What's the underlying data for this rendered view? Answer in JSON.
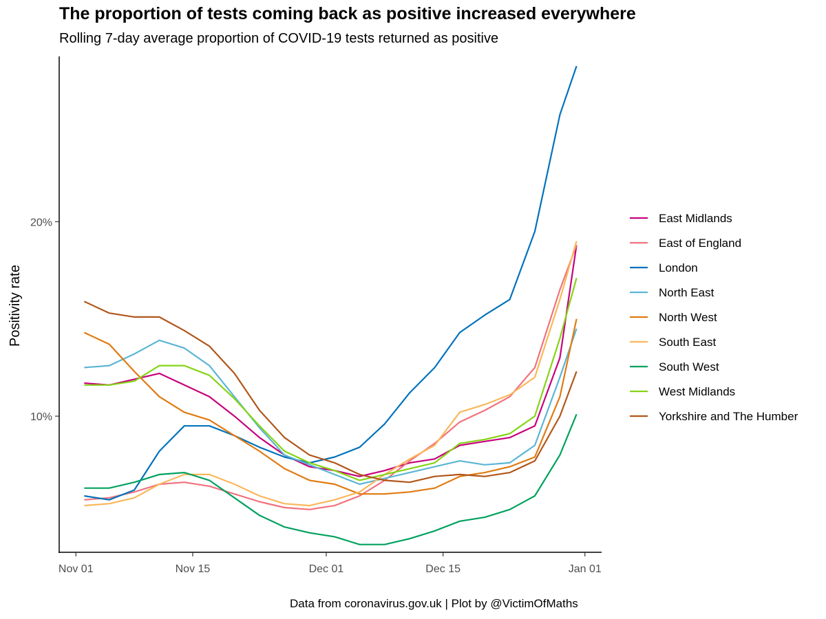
{
  "title": "The proportion of tests coming back as positive increased everywhere",
  "subtitle": "Rolling 7-day average proportion of COVID-19 tests returned as positive",
  "caption": "Data from coronavirus.gov.uk | Plot by @VictimOfMaths",
  "chart_data": {
    "type": "line",
    "title": "The proportion of tests coming back as positive increased everywhere",
    "subtitle": "Rolling 7-day average proportion of COVID-19 tests returned as positive",
    "ylabel": "Positivity rate",
    "xlabel": "",
    "x_start": "2020-10-30",
    "x_end": "2021-01-03",
    "ylim": [
      3.0,
      28.5
    ],
    "grid": false,
    "legend_position": "right",
    "x_ticks": [
      {
        "date": "2020-11-01",
        "label": "Nov 01"
      },
      {
        "date": "2020-11-15",
        "label": "Nov 15"
      },
      {
        "date": "2020-12-01",
        "label": "Dec 01"
      },
      {
        "date": "2020-12-15",
        "label": "Dec 15"
      },
      {
        "date": "2021-01-01",
        "label": "Jan 01"
      }
    ],
    "y_ticks": [
      {
        "value": 10,
        "label": "10%"
      },
      {
        "value": 20,
        "label": "20%"
      }
    ],
    "series": [
      {
        "name": "East Midlands",
        "color": "#C7007D",
        "points": [
          [
            "2020-11-02",
            11.7
          ],
          [
            "2020-11-05",
            11.6
          ],
          [
            "2020-11-08",
            11.9
          ],
          [
            "2020-11-11",
            12.2
          ],
          [
            "2020-11-14",
            11.6
          ],
          [
            "2020-11-17",
            11.0
          ],
          [
            "2020-11-20",
            10.0
          ],
          [
            "2020-11-23",
            8.9
          ],
          [
            "2020-11-26",
            8.0
          ],
          [
            "2020-11-29",
            7.4
          ],
          [
            "2020-12-02",
            7.2
          ],
          [
            "2020-12-05",
            6.9
          ],
          [
            "2020-12-08",
            7.2
          ],
          [
            "2020-12-11",
            7.6
          ],
          [
            "2020-12-14",
            7.8
          ],
          [
            "2020-12-17",
            8.5
          ],
          [
            "2020-12-20",
            8.7
          ],
          [
            "2020-12-23",
            8.9
          ],
          [
            "2020-12-26",
            9.5
          ],
          [
            "2020-12-29",
            13.0
          ],
          [
            "2020-12-31",
            18.8
          ]
        ]
      },
      {
        "name": "East of England",
        "color": "#F0727D",
        "points": [
          [
            "2020-11-02",
            5.7
          ],
          [
            "2020-11-05",
            5.8
          ],
          [
            "2020-11-08",
            6.1
          ],
          [
            "2020-11-11",
            6.5
          ],
          [
            "2020-11-14",
            6.6
          ],
          [
            "2020-11-17",
            6.4
          ],
          [
            "2020-11-20",
            6.0
          ],
          [
            "2020-11-23",
            5.6
          ],
          [
            "2020-11-26",
            5.3
          ],
          [
            "2020-11-29",
            5.2
          ],
          [
            "2020-12-02",
            5.4
          ],
          [
            "2020-12-05",
            5.9
          ],
          [
            "2020-12-08",
            6.7
          ],
          [
            "2020-12-11",
            7.7
          ],
          [
            "2020-12-14",
            8.6
          ],
          [
            "2020-12-17",
            9.7
          ],
          [
            "2020-12-20",
            10.3
          ],
          [
            "2020-12-23",
            11.0
          ],
          [
            "2020-12-26",
            12.5
          ],
          [
            "2020-12-29",
            16.5
          ],
          [
            "2020-12-31",
            18.8
          ]
        ]
      },
      {
        "name": "London",
        "color": "#0072BB",
        "points": [
          [
            "2020-11-02",
            5.9
          ],
          [
            "2020-11-05",
            5.7
          ],
          [
            "2020-11-08",
            6.2
          ],
          [
            "2020-11-11",
            8.2
          ],
          [
            "2020-11-14",
            9.5
          ],
          [
            "2020-11-17",
            9.5
          ],
          [
            "2020-11-20",
            9.0
          ],
          [
            "2020-11-23",
            8.4
          ],
          [
            "2020-11-26",
            7.9
          ],
          [
            "2020-11-29",
            7.6
          ],
          [
            "2020-12-02",
            7.9
          ],
          [
            "2020-12-05",
            8.4
          ],
          [
            "2020-12-08",
            9.6
          ],
          [
            "2020-12-11",
            11.2
          ],
          [
            "2020-12-14",
            12.5
          ],
          [
            "2020-12-17",
            14.3
          ],
          [
            "2020-12-20",
            15.2
          ],
          [
            "2020-12-23",
            16.0
          ],
          [
            "2020-12-26",
            19.5
          ],
          [
            "2020-12-29",
            25.5
          ],
          [
            "2020-12-31",
            28.0
          ]
        ]
      },
      {
        "name": "North East",
        "color": "#5BB5D5",
        "points": [
          [
            "2020-11-02",
            12.5
          ],
          [
            "2020-11-05",
            12.6
          ],
          [
            "2020-11-08",
            13.2
          ],
          [
            "2020-11-11",
            13.9
          ],
          [
            "2020-11-14",
            13.5
          ],
          [
            "2020-11-17",
            12.6
          ],
          [
            "2020-11-20",
            11.0
          ],
          [
            "2020-11-23",
            9.4
          ],
          [
            "2020-11-26",
            8.0
          ],
          [
            "2020-11-29",
            7.5
          ],
          [
            "2020-12-02",
            7.0
          ],
          [
            "2020-12-05",
            6.5
          ],
          [
            "2020-12-08",
            6.8
          ],
          [
            "2020-12-11",
            7.1
          ],
          [
            "2020-12-14",
            7.4
          ],
          [
            "2020-12-17",
            7.7
          ],
          [
            "2020-12-20",
            7.5
          ],
          [
            "2020-12-23",
            7.6
          ],
          [
            "2020-12-26",
            8.5
          ],
          [
            "2020-12-29",
            12.0
          ],
          [
            "2020-12-31",
            14.5
          ]
        ]
      },
      {
        "name": "North West",
        "color": "#E07A10",
        "points": [
          [
            "2020-11-02",
            14.3
          ],
          [
            "2020-11-05",
            13.7
          ],
          [
            "2020-11-08",
            12.3
          ],
          [
            "2020-11-11",
            11.0
          ],
          [
            "2020-11-14",
            10.2
          ],
          [
            "2020-11-17",
            9.8
          ],
          [
            "2020-11-20",
            9.0
          ],
          [
            "2020-11-23",
            8.2
          ],
          [
            "2020-11-26",
            7.3
          ],
          [
            "2020-11-29",
            6.7
          ],
          [
            "2020-12-02",
            6.5
          ],
          [
            "2020-12-05",
            6.0
          ],
          [
            "2020-12-08",
            6.0
          ],
          [
            "2020-12-11",
            6.1
          ],
          [
            "2020-12-14",
            6.3
          ],
          [
            "2020-12-17",
            6.9
          ],
          [
            "2020-12-20",
            7.1
          ],
          [
            "2020-12-23",
            7.4
          ],
          [
            "2020-12-26",
            7.9
          ],
          [
            "2020-12-29",
            11.0
          ],
          [
            "2020-12-31",
            15.0
          ]
        ]
      },
      {
        "name": "South East",
        "color": "#FAB75A",
        "points": [
          [
            "2020-11-02",
            5.4
          ],
          [
            "2020-11-05",
            5.5
          ],
          [
            "2020-11-08",
            5.8
          ],
          [
            "2020-11-11",
            6.5
          ],
          [
            "2020-11-14",
            7.0
          ],
          [
            "2020-11-17",
            7.0
          ],
          [
            "2020-11-20",
            6.5
          ],
          [
            "2020-11-23",
            5.9
          ],
          [
            "2020-11-26",
            5.5
          ],
          [
            "2020-11-29",
            5.4
          ],
          [
            "2020-12-02",
            5.7
          ],
          [
            "2020-12-05",
            6.1
          ],
          [
            "2020-12-08",
            7.0
          ],
          [
            "2020-12-11",
            7.8
          ],
          [
            "2020-12-14",
            8.5
          ],
          [
            "2020-12-17",
            10.2
          ],
          [
            "2020-12-20",
            10.6
          ],
          [
            "2020-12-23",
            11.1
          ],
          [
            "2020-12-26",
            12.0
          ],
          [
            "2020-12-29",
            16.0
          ],
          [
            "2020-12-31",
            19.0
          ]
        ]
      },
      {
        "name": "South West",
        "color": "#00A15E",
        "points": [
          [
            "2020-11-02",
            6.3
          ],
          [
            "2020-11-05",
            6.3
          ],
          [
            "2020-11-08",
            6.6
          ],
          [
            "2020-11-11",
            7.0
          ],
          [
            "2020-11-14",
            7.1
          ],
          [
            "2020-11-17",
            6.7
          ],
          [
            "2020-11-20",
            5.8
          ],
          [
            "2020-11-23",
            4.9
          ],
          [
            "2020-11-26",
            4.3
          ],
          [
            "2020-11-29",
            4.0
          ],
          [
            "2020-12-02",
            3.8
          ],
          [
            "2020-12-05",
            3.4
          ],
          [
            "2020-12-08",
            3.4
          ],
          [
            "2020-12-11",
            3.7
          ],
          [
            "2020-12-14",
            4.1
          ],
          [
            "2020-12-17",
            4.6
          ],
          [
            "2020-12-20",
            4.8
          ],
          [
            "2020-12-23",
            5.2
          ],
          [
            "2020-12-26",
            5.9
          ],
          [
            "2020-12-29",
            8.0
          ],
          [
            "2020-12-31",
            10.1
          ]
        ]
      },
      {
        "name": "West Midlands",
        "color": "#84D415",
        "points": [
          [
            "2020-11-02",
            11.6
          ],
          [
            "2020-11-05",
            11.6
          ],
          [
            "2020-11-08",
            11.8
          ],
          [
            "2020-11-11",
            12.6
          ],
          [
            "2020-11-14",
            12.6
          ],
          [
            "2020-11-17",
            12.1
          ],
          [
            "2020-11-20",
            10.9
          ],
          [
            "2020-11-23",
            9.5
          ],
          [
            "2020-11-26",
            8.2
          ],
          [
            "2020-11-29",
            7.6
          ],
          [
            "2020-12-02",
            7.2
          ],
          [
            "2020-12-05",
            6.7
          ],
          [
            "2020-12-08",
            7.0
          ],
          [
            "2020-12-11",
            7.3
          ],
          [
            "2020-12-14",
            7.6
          ],
          [
            "2020-12-17",
            8.6
          ],
          [
            "2020-12-20",
            8.8
          ],
          [
            "2020-12-23",
            9.1
          ],
          [
            "2020-12-26",
            10.0
          ],
          [
            "2020-12-29",
            14.0
          ],
          [
            "2020-12-31",
            17.1
          ]
        ]
      },
      {
        "name": "Yorkshire and The Humber",
        "color": "#B1561A",
        "points": [
          [
            "2020-11-02",
            15.9
          ],
          [
            "2020-11-05",
            15.3
          ],
          [
            "2020-11-08",
            15.1
          ],
          [
            "2020-11-11",
            15.1
          ],
          [
            "2020-11-14",
            14.4
          ],
          [
            "2020-11-17",
            13.6
          ],
          [
            "2020-11-20",
            12.2
          ],
          [
            "2020-11-23",
            10.3
          ],
          [
            "2020-11-26",
            8.9
          ],
          [
            "2020-11-29",
            8.0
          ],
          [
            "2020-12-02",
            7.6
          ],
          [
            "2020-12-05",
            7.0
          ],
          [
            "2020-12-08",
            6.7
          ],
          [
            "2020-12-11",
            6.6
          ],
          [
            "2020-12-14",
            6.9
          ],
          [
            "2020-12-17",
            7.0
          ],
          [
            "2020-12-20",
            6.9
          ],
          [
            "2020-12-23",
            7.1
          ],
          [
            "2020-12-26",
            7.7
          ],
          [
            "2020-12-29",
            10.0
          ],
          [
            "2020-12-31",
            12.3
          ]
        ]
      }
    ]
  }
}
